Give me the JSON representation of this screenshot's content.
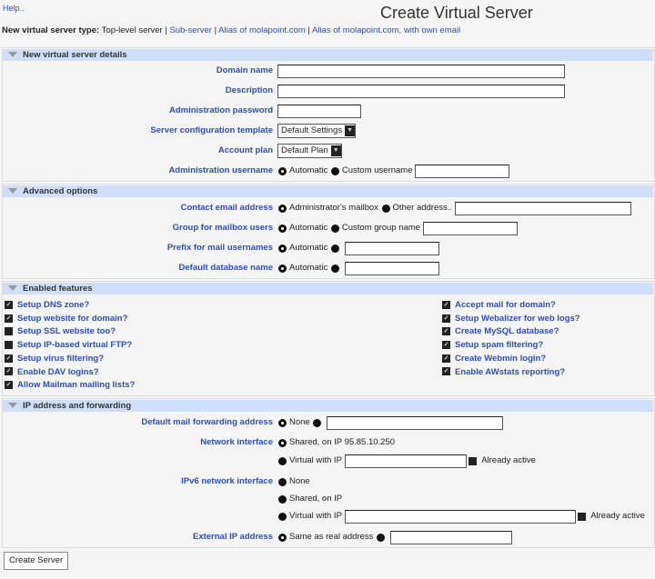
{
  "header": {
    "help": "Help..",
    "title": "Create Virtual Server",
    "type_label": "New virtual server type:",
    "type_current": "Top-level server",
    "sep": "|",
    "type_links": [
      "Sub-server",
      "Alias of molapoint.com",
      "Alias of molapoint.com, with own email"
    ]
  },
  "sections": {
    "details": {
      "title": "New virtual server details",
      "domain_name": "Domain name",
      "description": "Description",
      "admin_password": "Administration password",
      "config_template": "Server configuration template",
      "config_template_value": "Default Settings",
      "account_plan": "Account plan",
      "account_plan_value": "Default Plan",
      "admin_username": "Administration username",
      "automatic": "Automatic",
      "custom_username": "Custom username"
    },
    "advanced": {
      "title": "Advanced options",
      "contact_email": "Contact email address",
      "admin_mailbox": "Administrator's mailbox",
      "other_address": "Other address..",
      "group_mailbox": "Group for mailbox users",
      "automatic": "Automatic",
      "custom_group": "Custom group name",
      "prefix_mail": "Prefix for mail usernames",
      "default_db": "Default database name"
    },
    "features": {
      "title": "Enabled features",
      "left": [
        {
          "label": "Setup DNS zone?",
          "checked": true
        },
        {
          "label": "Setup website for domain?",
          "checked": true
        },
        {
          "label": "Setup SSL website too?",
          "checked": false
        },
        {
          "label": "Setup IP-based virtual FTP?",
          "checked": false
        },
        {
          "label": "Setup virus filtering?",
          "checked": true
        },
        {
          "label": "Enable DAV logins?",
          "checked": true
        },
        {
          "label": "Allow Mailman mailing lists?",
          "checked": true
        }
      ],
      "right": [
        {
          "label": "Accept mail for domain?",
          "checked": true
        },
        {
          "label": "Setup Webalizer for web logs?",
          "checked": true
        },
        {
          "label": "Create MySQL database?",
          "checked": true
        },
        {
          "label": "Setup spam filtering?",
          "checked": true
        },
        {
          "label": "Create Webmin login?",
          "checked": true
        },
        {
          "label": "Enable AWstats reporting?",
          "checked": true
        }
      ]
    },
    "ip": {
      "title": "IP address and forwarding",
      "default_fwd": "Default mail forwarding address",
      "none": "None",
      "network_iface": "Network interface",
      "shared_ip": "Shared, on IP 95.85.10.250",
      "virtual_ip": "Virtual with IP",
      "already_active": "Already active",
      "ipv6_iface": "IPv6 network interface",
      "shared_on_ip": "Shared, on IP",
      "external_ip": "External IP address",
      "same_as_real": "Same as real address"
    }
  },
  "buttons": {
    "create": "Create Server"
  }
}
